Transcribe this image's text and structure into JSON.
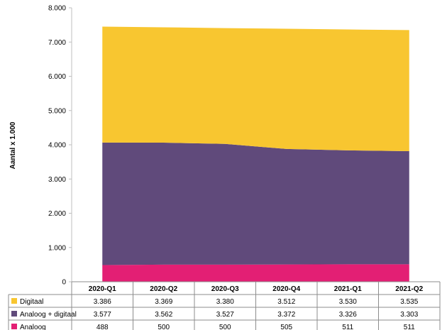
{
  "chart_data": {
    "type": "area",
    "stacked": true,
    "ylabel": "Aantal x 1.000",
    "ylim": [
      0,
      8000
    ],
    "yticks": [
      "0",
      "1.000",
      "2.000",
      "3.000",
      "4.000",
      "5.000",
      "6.000",
      "7.000",
      "8.000"
    ],
    "ytick_values": [
      0,
      1000,
      2000,
      3000,
      4000,
      5000,
      6000,
      7000,
      8000
    ],
    "grid": false,
    "legend": "data-table",
    "categories": [
      "2020-Q1",
      "2020-Q2",
      "2020-Q3",
      "2020-Q4",
      "2021-Q1",
      "2021-Q2"
    ],
    "series": [
      {
        "name": "Digitaal",
        "color": "#f8c630",
        "values": [
          3386,
          3369,
          3380,
          3512,
          3530,
          3535
        ],
        "labels": [
          "3.386",
          "3.369",
          "3.380",
          "3.512",
          "3.530",
          "3.535"
        ]
      },
      {
        "name": "Analoog + digitaal",
        "color": "#604a7b",
        "values": [
          3577,
          3562,
          3527,
          3372,
          3326,
          3303
        ],
        "labels": [
          "3.577",
          "3.562",
          "3.527",
          "3.372",
          "3.326",
          "3.303"
        ]
      },
      {
        "name": "Analoog",
        "color": "#e31f74",
        "values": [
          488,
          500,
          500,
          505,
          511,
          511
        ],
        "labels": [
          "488",
          "500",
          "500",
          "505",
          "511",
          "511"
        ]
      }
    ]
  }
}
